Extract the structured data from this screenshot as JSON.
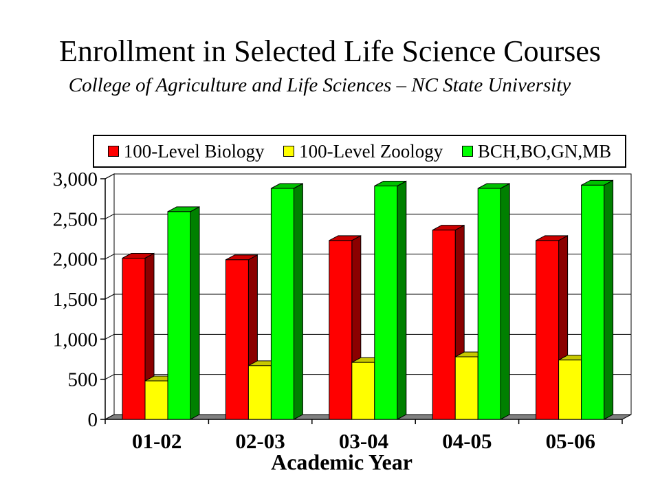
{
  "chart_data": {
    "type": "bar",
    "title": "Enrollment in Selected Life Science Courses",
    "subtitle": "College of Agriculture and Life Sciences – NC State University",
    "xlabel": "Academic Year",
    "ylabel": "",
    "categories": [
      "01-02",
      "02-03",
      "03-04",
      "04-05",
      "05-06"
    ],
    "series": [
      {
        "name": "100-Level Biology",
        "values": [
          2010,
          1990,
          2230,
          2360,
          2230
        ],
        "color": "#ff0000",
        "side_color": "#8b0000"
      },
      {
        "name": "100-Level Zoology",
        "values": [
          480,
          670,
          710,
          780,
          740
        ],
        "color": "#ffff00",
        "side_color": "#9a9a00"
      },
      {
        "name": "BCH,BO,GN,MB",
        "values": [
          2590,
          2880,
          2910,
          2880,
          2920
        ],
        "color": "#00ff00",
        "side_color": "#008000"
      }
    ],
    "ylim": [
      0,
      3000
    ],
    "yticks": [
      0,
      500,
      1000,
      1500,
      2000,
      2500,
      3000
    ],
    "ytick_labels": [
      "0",
      "500",
      "1,000",
      "1,500",
      "2,000",
      "2,500",
      "3,000"
    ],
    "grid": true,
    "legend_position": "top",
    "three_d": true
  }
}
